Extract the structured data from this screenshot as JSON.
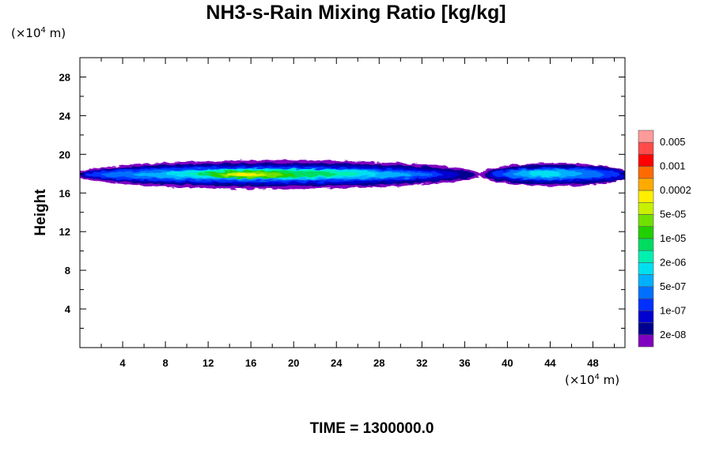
{
  "title": "NH3-s-Rain Mixing Ratio [kg/kg]",
  "y_unit": {
    "prefix": "(×10",
    "exp": "4",
    "suffix": " m)"
  },
  "x_unit": {
    "prefix": "(×10",
    "exp": "4",
    "suffix": " m)"
  },
  "ylabel": "Height",
  "time_label": "TIME = 1300000.0",
  "chart_data": {
    "type": "heatmap",
    "title": "NH3-s-Rain Mixing Ratio [kg/kg]",
    "xlabel": "",
    "ylabel": "Height",
    "xlim": [
      0,
      51
    ],
    "ylim": [
      0,
      30
    ],
    "x_ticks": [
      4,
      8,
      12,
      16,
      20,
      24,
      28,
      32,
      36,
      40,
      44,
      48
    ],
    "y_ticks": [
      4,
      8,
      12,
      16,
      20,
      24,
      28
    ],
    "grid": false,
    "colorbar": {
      "placement": "right",
      "labels": [
        "0.005",
        "0.001",
        "0.0002",
        "5e-05",
        "1e-05",
        "2e-06",
        "5e-07",
        "1e-07",
        "2e-08"
      ],
      "colors": [
        "#ff9a9a",
        "#ff4a4a",
        "#ff0000",
        "#ff6a00",
        "#ffaa00",
        "#ffee00",
        "#c8f000",
        "#70e000",
        "#20d000",
        "#00dc60",
        "#00f0b0",
        "#00e0f0",
        "#00b0ff",
        "#0070ff",
        "#0030ff",
        "#0000d0",
        "#000090",
        "#8000c0"
      ]
    },
    "field_regions": [
      {
        "x": [
          0,
          37.5
        ],
        "y": [
          16.5,
          19.3
        ],
        "min_level": "2e-08",
        "max_level": "0.0002"
      },
      {
        "x": [
          37.5,
          51
        ],
        "y": [
          16.8,
          19.0
        ],
        "min_level": "2e-08",
        "max_level": "1e-05"
      }
    ]
  }
}
